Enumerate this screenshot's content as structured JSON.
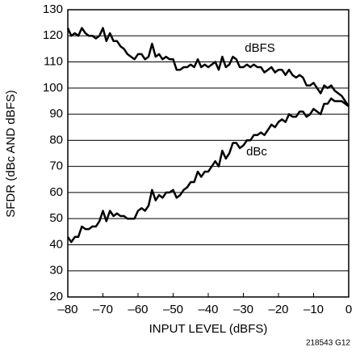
{
  "chart_data": {
    "type": "line",
    "ylabel": "SFDR (dBc AND dBFS)",
    "xlabel": "INPUT LEVEL (dBFS)",
    "annotations": [
      "dBFS",
      "dBc",
      "218543 G12"
    ],
    "x": [
      -80,
      -79,
      -78,
      -77,
      -76,
      -75,
      -74,
      -73,
      -72,
      -71,
      -70,
      -69,
      -68,
      -67,
      -66,
      -65,
      -64,
      -63,
      -62,
      -61,
      -60,
      -59,
      -58,
      -57,
      -56,
      -55,
      -54,
      -53,
      -52,
      -51,
      -50,
      -49,
      -48,
      -47,
      -46,
      -45,
      -44,
      -43,
      -42,
      -41,
      -40,
      -39,
      -38,
      -37,
      -36,
      -35,
      -34,
      -33,
      -32,
      -31,
      -30,
      -29,
      -28,
      -27,
      -26,
      -25,
      -24,
      -23,
      -22,
      -21,
      -20,
      -19,
      -18,
      -17,
      -16,
      -15,
      -14,
      -13,
      -12,
      -11,
      -10,
      -9,
      -8,
      -7,
      -6,
      -5,
      -4,
      -3,
      -2,
      -1,
      0
    ],
    "series": [
      {
        "name": "dBFS",
        "color": "#000000",
        "values": [
          123,
          120,
          121,
          120,
          123,
          121,
          120,
          120,
          119,
          120,
          123,
          118,
          121,
          118,
          118,
          116,
          115,
          113,
          112,
          111,
          113,
          113,
          111,
          112,
          117,
          112,
          113,
          111,
          112,
          111,
          111,
          107,
          107,
          108,
          108,
          109,
          108,
          111,
          108,
          109,
          108,
          109,
          110,
          107,
          112,
          108,
          109,
          112,
          111,
          108,
          108,
          109,
          108,
          109,
          108,
          108,
          106,
          107,
          108,
          106,
          107,
          107,
          105,
          107,
          105,
          104,
          105,
          104,
          101,
          101,
          102,
          100,
          98,
          101,
          100,
          101,
          99,
          98,
          97,
          95,
          93
        ]
      },
      {
        "name": "dBc",
        "color": "#000000",
        "values": [
          43,
          41,
          43,
          43,
          47,
          46,
          46,
          47,
          47,
          49,
          53,
          49,
          53,
          51,
          52,
          51,
          51,
          50,
          50,
          50,
          53,
          54,
          53,
          55,
          61,
          57,
          59,
          58,
          60,
          60,
          61,
          58,
          59,
          61,
          62,
          64,
          64,
          68,
          66,
          68,
          68,
          70,
          72,
          70,
          76,
          73,
          75,
          79,
          79,
          77,
          78,
          80,
          80,
          82,
          82,
          83,
          82,
          84,
          86,
          85,
          87,
          88,
          87,
          90,
          89,
          89,
          91,
          91,
          89,
          90,
          92,
          91,
          90,
          94,
          94,
          96,
          95,
          95,
          95,
          94,
          93
        ]
      }
    ],
    "xlim": [
      -80,
      0
    ],
    "ylim": [
      20,
      130
    ],
    "xticks": [
      {
        "value": -80,
        "label": "–80"
      },
      {
        "value": -70,
        "label": "–70"
      },
      {
        "value": -60,
        "label": "–60"
      },
      {
        "value": -50,
        "label": "–50"
      },
      {
        "value": -40,
        "label": "–40"
      },
      {
        "value": -30,
        "label": "–30"
      },
      {
        "value": -20,
        "label": "–20"
      },
      {
        "value": -10,
        "label": "–10"
      },
      0
    ],
    "yticks": [
      20,
      30,
      40,
      50,
      60,
      70,
      80,
      90,
      100,
      110,
      120,
      130
    ],
    "grid": true
  }
}
